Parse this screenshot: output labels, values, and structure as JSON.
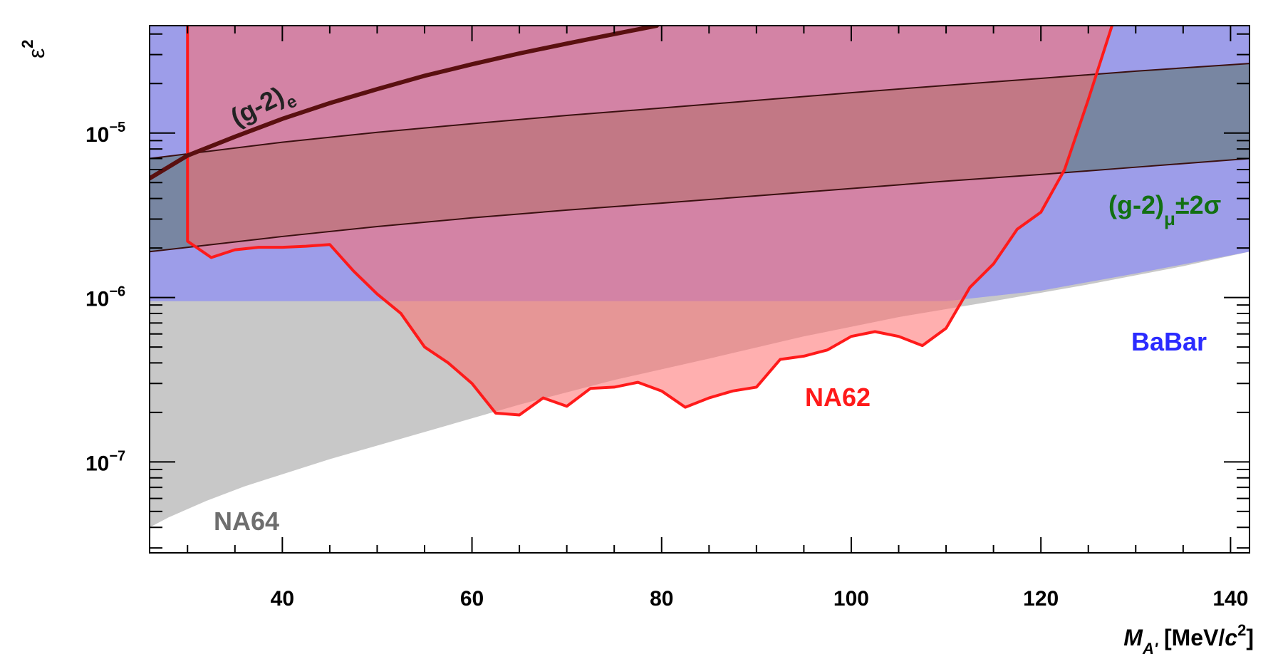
{
  "chart_data": {
    "type": "area",
    "xlabel": {
      "main": "M",
      "sub": "A'",
      "unit_pre": " [MeV/",
      "unit_c": "c",
      "unit_sup": "2",
      "unit_post": "]"
    },
    "ylabel": {
      "main": "ε",
      "sup": "2"
    },
    "xlim": [
      26,
      142
    ],
    "ylim": [
      2.8e-08,
      4.5e-05
    ],
    "xscale": "linear",
    "yscale": "log",
    "grid": false,
    "x_ticks": [
      {
        "value": 40,
        "label": "40"
      },
      {
        "value": 60,
        "label": "60"
      },
      {
        "value": 80,
        "label": "80"
      },
      {
        "value": 100,
        "label": "100"
      },
      {
        "value": 120,
        "label": "120"
      },
      {
        "value": 140,
        "label": "140"
      }
    ],
    "y_ticks": [
      {
        "value": 1e-07,
        "base": "10",
        "exp": "−7"
      },
      {
        "value": 1e-06,
        "base": "10",
        "exp": "−6"
      },
      {
        "value": 1e-05,
        "base": "10",
        "exp": "−5"
      }
    ],
    "series": [
      {
        "name": "BaBar",
        "kind": "excluded_region_above",
        "color": "#8080ff",
        "label_color": "#2b2bff",
        "x": [
          26,
          30,
          40,
          50,
          60,
          70,
          80,
          90,
          100,
          110,
          120,
          130,
          142
        ],
        "y": [
          9.5e-07,
          9.5e-07,
          9.5e-07,
          9.5e-07,
          9.5e-07,
          9.5e-07,
          9.5e-07,
          9.5e-07,
          9.5e-07,
          9.5e-07,
          1.1e-06,
          1.4e-06,
          1.9e-06
        ]
      },
      {
        "name": "NA64",
        "kind": "excluded_region_above",
        "color": "#c8c8c8",
        "label_color": "#6e6e6e",
        "x": [
          26,
          28,
          32,
          36,
          45,
          55,
          65,
          75,
          85,
          95,
          105,
          115,
          125,
          135,
          142
        ],
        "y": [
          4e-08,
          4.6e-08,
          5.8e-08,
          7.1e-08,
          1.04e-07,
          1.52e-07,
          2.23e-07,
          3.15e-07,
          4.25e-07,
          5.8e-07,
          7.6e-07,
          9.5e-07,
          1.2e-06,
          1.55e-06,
          1.9e-06
        ]
      },
      {
        "name": "NA62",
        "kind": "excluded_region_above",
        "color": "#ff1a1a",
        "fill": "#ff6e6e",
        "label_color": "#ff1a1a",
        "x": [
          30,
          30,
          32.5,
          35,
          37.5,
          40,
          42.5,
          45,
          47.5,
          50,
          52.5,
          55,
          57.5,
          60,
          62.5,
          65,
          67.5,
          70,
          72.5,
          75,
          77.5,
          80,
          82.5,
          85,
          87.5,
          90,
          92.5,
          95,
          97.5,
          100,
          102.5,
          105,
          107.5,
          110,
          112.5,
          115,
          117.5,
          120,
          122.5,
          125,
          127.5
        ],
        "y": [
          4.5e-05,
          2.2e-06,
          1.75e-06,
          1.95e-06,
          2.02e-06,
          2.02e-06,
          2.05e-06,
          2.1e-06,
          1.45e-06,
          1.05e-06,
          8e-07,
          5e-07,
          4e-07,
          3e-07,
          1.98e-07,
          1.93e-07,
          2.45e-07,
          2.18e-07,
          2.8e-07,
          2.85e-07,
          3.05e-07,
          2.7e-07,
          2.15e-07,
          2.45e-07,
          2.7e-07,
          2.85e-07,
          4.2e-07,
          4.4e-07,
          4.8e-07,
          5.8e-07,
          6.2e-07,
          5.8e-07,
          5.1e-07,
          6.5e-07,
          1.15e-06,
          1.6e-06,
          2.6e-06,
          3.3e-06,
          6e-06,
          1.6e-05,
          4.5e-05
        ]
      },
      {
        "name": "(g-2)μ±2σ",
        "kind": "band",
        "color": "#6c7f8a",
        "line_color": "#3a1010",
        "label_color": "#127012",
        "x": [
          26,
          40,
          50,
          60,
          70,
          80,
          90,
          100,
          110,
          120,
          130,
          142
        ],
        "y_low": [
          1.9e-06,
          2.35e-06,
          2.7e-06,
          3.05e-06,
          3.4e-06,
          3.75e-06,
          4.15e-06,
          4.6e-06,
          5.1e-06,
          5.6e-06,
          6.2e-06,
          7e-06
        ],
        "y_high": [
          7e-06,
          8.8e-06,
          1.01e-05,
          1.14e-05,
          1.28e-05,
          1.42e-05,
          1.58e-05,
          1.76e-05,
          1.95e-05,
          2.15e-05,
          2.38e-05,
          2.65e-05
        ]
      },
      {
        "name": "(g-2)e",
        "kind": "line",
        "color": "#5a1010",
        "label_color": "#222222",
        "x": [
          26,
          30,
          35,
          40,
          45,
          50,
          55,
          60,
          65,
          70,
          75,
          79.5
        ],
        "y": [
          5.3e-06,
          7.3e-06,
          9.5e-06,
          1.22e-05,
          1.52e-05,
          1.85e-05,
          2.23e-05,
          2.62e-05,
          3.05e-05,
          3.5e-05,
          4e-05,
          4.5e-05
        ]
      }
    ],
    "annotations": [
      {
        "id": "babar",
        "text": "BaBar"
      },
      {
        "id": "na64",
        "text": "NA64"
      },
      {
        "id": "na62",
        "text": "NA62"
      },
      {
        "id": "gm2mu",
        "main": "(g-2)",
        "sub": "μ",
        "tail": "±2σ"
      },
      {
        "id": "gm2e",
        "main": "(g-2)",
        "sub": "e"
      }
    ]
  }
}
